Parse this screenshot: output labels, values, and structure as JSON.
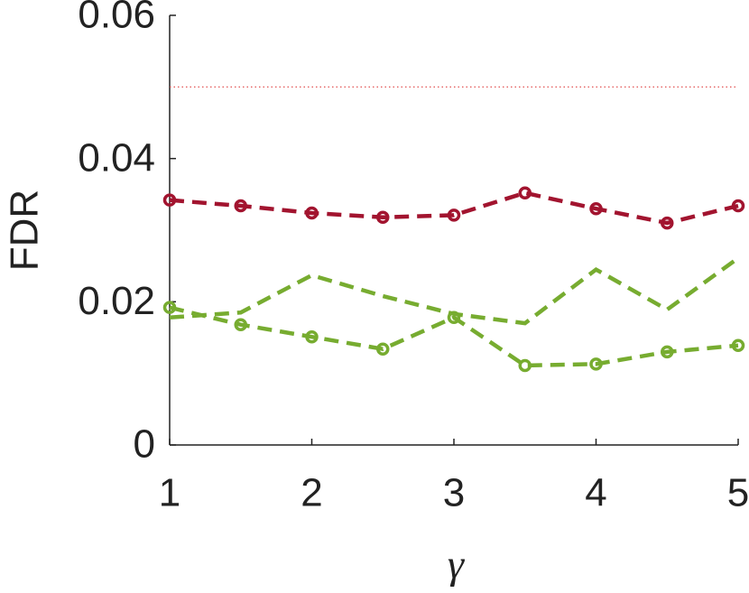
{
  "chart_data": {
    "type": "line",
    "xlabel": "γ",
    "ylabel": "FDR",
    "x": [
      1,
      1.5,
      2,
      2.5,
      3,
      3.5,
      4,
      4.5,
      5
    ],
    "xlim": [
      1,
      5
    ],
    "xticks": [
      1,
      2,
      3,
      4,
      5
    ],
    "ylim": [
      0,
      0.06
    ],
    "yticks": [
      0,
      0.02,
      0.04,
      0.06
    ],
    "series": [
      {
        "color": "#a2142f",
        "marker": "circle",
        "dash": "dashed",
        "values": [
          0.0342,
          0.0334,
          0.0324,
          0.0318,
          0.0321,
          0.0352,
          0.033,
          0.031,
          0.0334
        ]
      },
      {
        "color": "#77ac30",
        "marker": "circle",
        "dash": "dashed",
        "values": [
          0.0192,
          0.0168,
          0.0151,
          0.0134,
          0.0178,
          0.0111,
          0.0113,
          0.013,
          0.0139
        ]
      },
      {
        "color": "#77ac30",
        "marker": "none",
        "dash": "dashed",
        "values": [
          0.0178,
          0.0185,
          0.0237,
          0.0208,
          0.0183,
          0.017,
          0.0245,
          0.0189,
          0.0261
        ]
      }
    ],
    "reference_line": {
      "value": 0.05,
      "color": "#e04040"
    }
  }
}
